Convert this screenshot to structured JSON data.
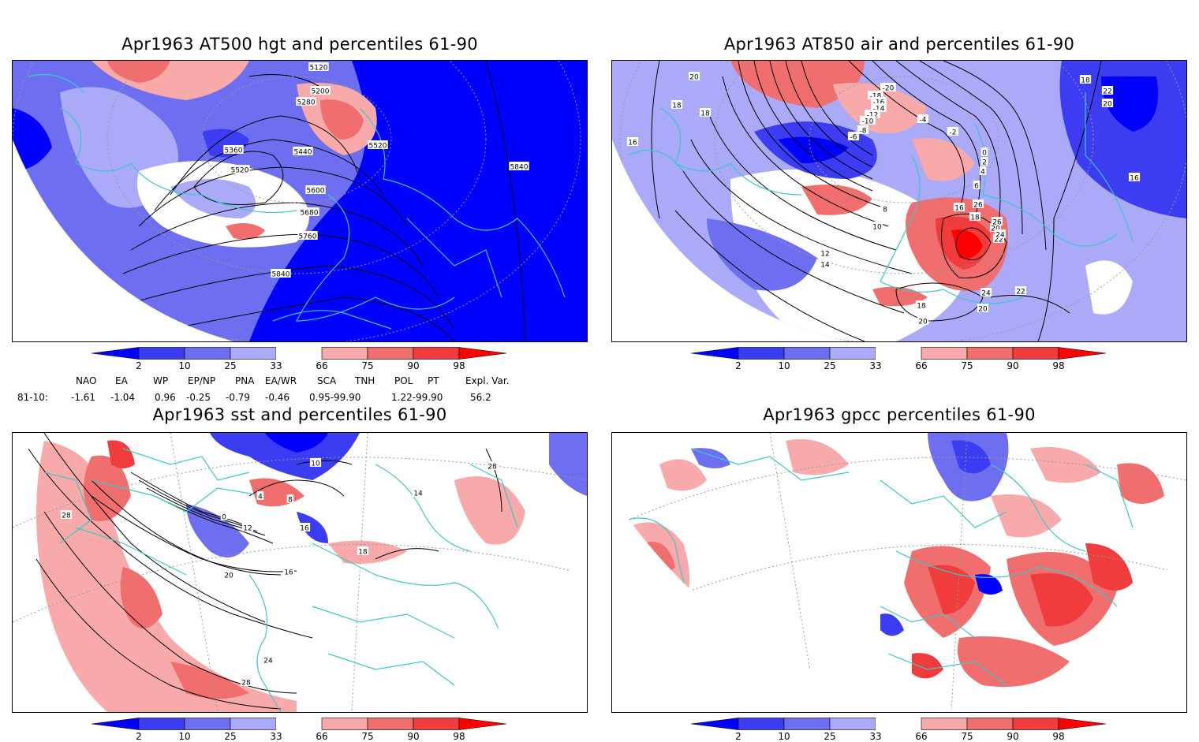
{
  "panels": [
    {
      "id": "z500",
      "title": "Apr1963 AT500 hgt and percentiles 61-90",
      "contour_labels": [
        "5120",
        "5200",
        "5280",
        "5360",
        "5440",
        "5520",
        "5520",
        "5600",
        "5680",
        "5760",
        "5840",
        "5840"
      ]
    },
    {
      "id": "t850",
      "title": "Apr1963 AT850 air and percentiles 61-90",
      "contour_labels": [
        "20",
        "18",
        "18",
        "16",
        "-20",
        "-18",
        "-16",
        "-14",
        "-12",
        "-10",
        "-8",
        "-6",
        "-4",
        "-2",
        "0",
        "2",
        "4",
        "6",
        "8",
        "10",
        "12",
        "14",
        "16",
        "18",
        "20",
        "22",
        "24",
        "26",
        "26",
        "24",
        "22",
        "20",
        "20",
        "18",
        "18",
        "22",
        "20",
        "16"
      ]
    },
    {
      "id": "sst",
      "title": "Apr1963 sst and percentiles 61-90",
      "contour_labels": [
        "28",
        "0",
        "4",
        "8",
        "12",
        "16",
        "20",
        "24",
        "28",
        "10",
        "16",
        "18",
        "28",
        "14"
      ]
    },
    {
      "id": "gpcc",
      "title": "Apr1963 gpcc percentiles 61-90",
      "contour_labels": []
    }
  ],
  "colorbar": {
    "labels": [
      "2",
      "10",
      "25",
      "33",
      "66",
      "75",
      "90",
      "98"
    ],
    "colors": {
      "c0": "#0000ff",
      "c1": "#3c3cf2",
      "c2": "#6e6ef0",
      "c3": "#aaaaf8",
      "w": "#ffffff",
      "c4": "#f8aaaa",
      "c5": "#f06e6e",
      "c6": "#f03c3c",
      "c7": "#ff0000"
    }
  },
  "teleconnections": {
    "headers": [
      "NAO",
      "EA",
      "WP",
      "EP/NP",
      "PNA",
      "EA/WR",
      "SCA",
      "TNH",
      "POL",
      "PT",
      "Expl. Var."
    ],
    "row_label": "81-10:",
    "values": [
      "-1.61",
      "-1.04",
      "0.96",
      "-0.25",
      "-0.79",
      "-0.46",
      "0.95-99.90",
      "1.22-99.90",
      "56.2"
    ]
  }
}
